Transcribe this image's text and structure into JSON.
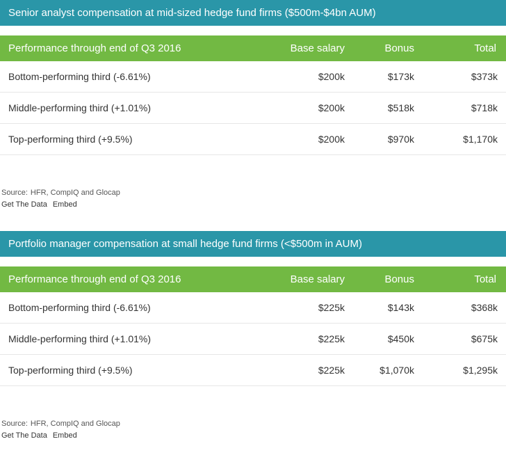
{
  "colors": {
    "title_bg": "#2a96a8",
    "header_bg": "#72b943",
    "title_text": "#ffffff",
    "header_text": "#ffffff",
    "row_text": "#333333",
    "row_border": "#e6e6e6",
    "footer_text": "#555555",
    "background": "#ffffff"
  },
  "structure_type": "table",
  "widgets": [
    {
      "title": "Senior analyst compensation at mid-sized hedge fund firms ($500m-$4bn AUM)",
      "columns": [
        "Performance through end of Q3 2016",
        "Base salary",
        "Bonus",
        "Total"
      ],
      "rows": [
        {
          "perf": "Bottom-performing third (-6.61%)",
          "base": "$200k",
          "bonus": "$173k",
          "total": "$373k"
        },
        {
          "perf": "Middle-performing third (+1.01%)",
          "base": "$200k",
          "bonus": "$518k",
          "total": "$718k"
        },
        {
          "perf": "Top-performing third (+9.5%)",
          "base": "$200k",
          "bonus": "$970k",
          "total": "$1,170k"
        }
      ],
      "source_label": "Source:",
      "source": "HFR, CompIQ and Glocap",
      "links": [
        "Get The Data",
        "Embed"
      ]
    },
    {
      "title": "Portfolio manager compensation at small hedge fund firms (<$500m in AUM)",
      "columns": [
        "Performance through end of Q3 2016",
        "Base salary",
        "Bonus",
        "Total"
      ],
      "rows": [
        {
          "perf": "Bottom-performing third (-6.61%)",
          "base": "$225k",
          "bonus": "$143k",
          "total": "$368k"
        },
        {
          "perf": "Middle-performing third (+1.01%)",
          "base": "$225k",
          "bonus": "$450k",
          "total": "$675k"
        },
        {
          "perf": "Top-performing third (+9.5%)",
          "base": "$225k",
          "bonus": "$1,070k",
          "total": "$1,295k"
        }
      ],
      "source_label": "Source:",
      "source": "HFR, CompIQ and Glocap",
      "links": [
        "Get The Data",
        "Embed"
      ]
    }
  ]
}
